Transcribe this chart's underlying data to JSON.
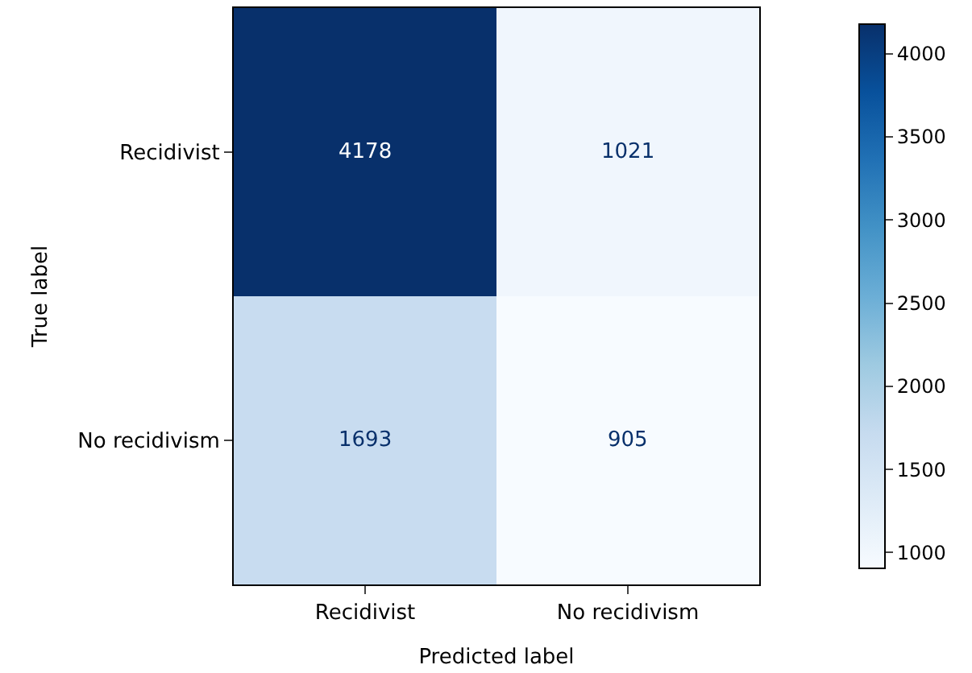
{
  "chart_data": {
    "type": "heatmap",
    "xlabel": "Predicted label",
    "ylabel": "True label",
    "categories": [
      "Recidivist",
      "No recidivism"
    ],
    "y_categories": [
      "Recidivist",
      "No recidivism"
    ],
    "cells": [
      [
        4178,
        1021
      ],
      [
        1693,
        905
      ]
    ],
    "clim": [
      905,
      4178
    ],
    "cticks": [
      1000,
      1500,
      2000,
      2500,
      3000,
      3500,
      4000
    ],
    "data_labels": true
  }
}
